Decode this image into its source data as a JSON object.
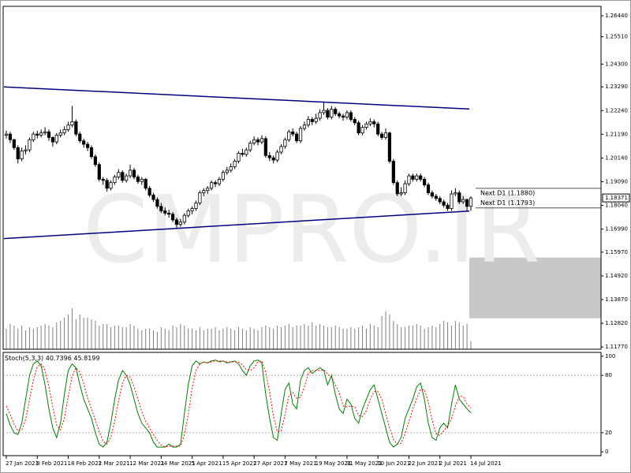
{
  "chart_data": [
    {
      "type": "candlestick",
      "watermark": "CMPRO.IR",
      "categories": [
        "27 Jan 2021",
        null,
        null,
        null,
        null,
        null,
        null,
        null,
        "8 Feb 2021",
        null,
        null,
        null,
        null,
        null,
        null,
        null,
        "18 Feb 2021",
        null,
        null,
        null,
        null,
        null,
        null,
        null,
        "2 Mar 2021",
        null,
        null,
        null,
        null,
        null,
        null,
        null,
        "12 Mar 2021",
        null,
        null,
        null,
        null,
        null,
        null,
        null,
        "24 Mar 2021",
        null,
        null,
        null,
        null,
        null,
        null,
        null,
        "5 Apr 2021",
        null,
        null,
        null,
        null,
        null,
        null,
        null,
        "15 Apr 2021",
        null,
        null,
        null,
        null,
        null,
        null,
        null,
        "27 Apr 2021",
        null,
        null,
        null,
        null,
        null,
        null,
        null,
        "7 May 2021",
        null,
        null,
        null,
        null,
        null,
        null,
        null,
        "19 May 2021",
        null,
        null,
        null,
        null,
        null,
        null,
        null,
        "31 May 2021",
        null,
        null,
        null,
        null,
        null,
        null,
        null,
        "10 Jun 2021",
        null,
        null,
        null,
        null,
        null,
        null,
        null,
        "22 Jun 2021",
        null,
        null,
        null,
        null,
        null,
        null,
        null,
        "2 Jul 2021",
        null,
        null,
        null,
        null,
        null,
        null,
        null,
        "14 Jul 2021"
      ],
      "open": [
        1.2115,
        1.212,
        1.2095,
        1.206,
        1.201,
        1.2045,
        1.205,
        1.2095,
        1.212,
        1.2115,
        1.2125,
        1.213,
        1.2105,
        1.2085,
        1.2115,
        1.2125,
        1.214,
        1.216,
        1.2175,
        1.212,
        1.209,
        1.2075,
        1.206,
        1.202,
        1.1985,
        1.192,
        1.1915,
        1.188,
        1.1905,
        1.193,
        1.195,
        1.1915,
        1.1935,
        1.196,
        1.193,
        1.191,
        1.192,
        1.188,
        1.185,
        1.183,
        1.18,
        1.178,
        1.177,
        1.1765,
        1.174,
        1.172,
        1.173,
        1.176,
        1.178,
        1.179,
        1.1815,
        1.186,
        1.187,
        1.188,
        1.1905,
        1.19,
        1.192,
        1.195,
        1.196,
        1.1975,
        1.2,
        1.2035,
        1.203,
        1.205,
        1.208,
        1.2095,
        1.2085,
        1.21,
        1.2025,
        1.2015,
        1.2005,
        1.204,
        1.2065,
        1.2095,
        1.213,
        1.212,
        1.209,
        1.2145,
        1.216,
        1.2185,
        1.2175,
        1.219,
        1.2215,
        1.2225,
        1.2195,
        1.223,
        1.221,
        1.22,
        1.2195,
        1.2215,
        1.2185,
        1.217,
        1.2125,
        1.215,
        1.2165,
        1.2175,
        1.2165,
        1.212,
        1.2105,
        1.2125,
        1.2,
        1.1905,
        1.1855,
        1.186,
        1.19,
        1.1935,
        1.192,
        1.1935,
        1.192,
        1.1895,
        1.186,
        1.1845,
        1.1835,
        1.182,
        1.1805,
        1.179,
        1.1855,
        1.186,
        1.182,
        1.183,
        1.18
      ],
      "high": [
        1.2135,
        1.213,
        1.21,
        1.207,
        1.206,
        1.207,
        1.2105,
        1.213,
        1.2135,
        1.214,
        1.215,
        1.214,
        1.211,
        1.2125,
        1.214,
        1.2155,
        1.2175,
        1.2245,
        1.2185,
        1.213,
        1.21,
        1.2085,
        1.207,
        1.203,
        1.1995,
        1.193,
        1.1925,
        1.1915,
        1.194,
        1.1965,
        1.196,
        1.1945,
        1.1985,
        1.197,
        1.194,
        1.193,
        1.1925,
        1.189,
        1.186,
        1.184,
        1.1815,
        1.1795,
        1.1785,
        1.1775,
        1.175,
        1.1745,
        1.177,
        1.179,
        1.18,
        1.1825,
        1.187,
        1.188,
        1.189,
        1.1915,
        1.1915,
        1.193,
        1.196,
        1.1975,
        1.199,
        1.201,
        1.2045,
        1.2055,
        1.206,
        1.209,
        1.211,
        1.2105,
        1.2115,
        1.211,
        1.204,
        1.2025,
        1.205,
        1.2075,
        1.2105,
        1.214,
        1.2145,
        1.213,
        1.2155,
        1.2175,
        1.22,
        1.2195,
        1.221,
        1.223,
        1.2265,
        1.2235,
        1.2245,
        1.224,
        1.222,
        1.221,
        1.2225,
        1.2225,
        1.2195,
        1.218,
        1.216,
        1.2175,
        1.219,
        1.2185,
        1.2175,
        1.213,
        1.2145,
        1.213,
        1.201,
        1.1915,
        1.1885,
        1.1915,
        1.1945,
        1.1945,
        1.1945,
        1.1945,
        1.193,
        1.1905,
        1.187,
        1.1855,
        1.1845,
        1.183,
        1.1815,
        1.187,
        1.188,
        1.187,
        1.1845,
        1.1835,
        1.1845
      ],
      "low": [
        1.21,
        1.208,
        1.205,
        1.199,
        1.2,
        1.203,
        1.204,
        1.2085,
        1.21,
        1.2105,
        1.2115,
        1.209,
        1.2065,
        1.2075,
        1.2105,
        1.2115,
        1.213,
        1.215,
        1.211,
        1.208,
        1.206,
        1.2045,
        1.201,
        1.1975,
        1.191,
        1.1895,
        1.1865,
        1.187,
        1.1895,
        1.192,
        1.1905,
        1.1905,
        1.1925,
        1.192,
        1.19,
        1.1895,
        1.187,
        1.184,
        1.182,
        1.179,
        1.177,
        1.176,
        1.175,
        1.173,
        1.1705,
        1.171,
        1.172,
        1.175,
        1.1765,
        1.178,
        1.1805,
        1.1845,
        1.1855,
        1.187,
        1.1885,
        1.189,
        1.191,
        1.194,
        1.195,
        1.1965,
        1.199,
        1.202,
        1.202,
        1.204,
        1.207,
        1.207,
        1.2075,
        1.2015,
        1.2,
        1.199,
        1.1995,
        1.203,
        1.2055,
        1.2085,
        1.211,
        1.208,
        1.208,
        1.2135,
        1.215,
        1.216,
        1.2165,
        1.218,
        1.2205,
        1.2185,
        1.2185,
        1.22,
        1.219,
        1.218,
        1.2185,
        1.2175,
        1.216,
        1.2115,
        1.2115,
        1.214,
        1.2155,
        1.215,
        1.211,
        1.2095,
        1.2095,
        1.199,
        1.1895,
        1.1845,
        1.1845,
        1.185,
        1.189,
        1.191,
        1.191,
        1.191,
        1.1885,
        1.185,
        1.1835,
        1.1825,
        1.181,
        1.1795,
        1.178,
        1.178,
        1.1845,
        1.181,
        1.181,
        1.178,
        1.178
      ],
      "close": [
        1.212,
        1.2095,
        1.206,
        1.201,
        1.2045,
        1.205,
        1.2095,
        1.212,
        1.2115,
        1.2125,
        1.213,
        1.2105,
        1.2085,
        1.2115,
        1.2125,
        1.214,
        1.216,
        1.2175,
        1.212,
        1.209,
        1.2075,
        1.206,
        1.202,
        1.1985,
        1.192,
        1.1915,
        1.188,
        1.1905,
        1.193,
        1.195,
        1.1915,
        1.1935,
        1.196,
        1.193,
        1.191,
        1.192,
        1.188,
        1.185,
        1.183,
        1.18,
        1.178,
        1.177,
        1.1765,
        1.174,
        1.172,
        1.173,
        1.176,
        1.178,
        1.179,
        1.1815,
        1.186,
        1.187,
        1.188,
        1.1905,
        1.19,
        1.192,
        1.195,
        1.196,
        1.1975,
        1.2,
        1.2035,
        1.203,
        1.205,
        1.208,
        1.2095,
        1.2085,
        1.21,
        1.2025,
        1.2015,
        1.2005,
        1.204,
        1.2065,
        1.2095,
        1.213,
        1.212,
        1.209,
        1.2145,
        1.216,
        1.2185,
        1.2175,
        1.219,
        1.2215,
        1.2225,
        1.2195,
        1.223,
        1.221,
        1.22,
        1.2195,
        1.2215,
        1.2185,
        1.217,
        1.2125,
        1.215,
        1.2165,
        1.2175,
        1.2165,
        1.212,
        1.2105,
        1.2125,
        1.2,
        1.1905,
        1.1855,
        1.186,
        1.19,
        1.1935,
        1.192,
        1.1935,
        1.192,
        1.1895,
        1.186,
        1.1845,
        1.1835,
        1.182,
        1.1805,
        1.179,
        1.1855,
        1.186,
        1.182,
        1.183,
        1.18,
        1.1837
      ],
      "volume": [
        26,
        32,
        30,
        26,
        30,
        24,
        28,
        26,
        28,
        30,
        32,
        30,
        28,
        34,
        36,
        40,
        44,
        52,
        38,
        44,
        40,
        40,
        38,
        36,
        30,
        32,
        32,
        28,
        30,
        30,
        28,
        28,
        32,
        30,
        26,
        24,
        26,
        26,
        24,
        22,
        28,
        26,
        24,
        30,
        28,
        32,
        30,
        26,
        26,
        24,
        28,
        24,
        26,
        26,
        28,
        24,
        26,
        28,
        26,
        24,
        28,
        26,
        24,
        28,
        26,
        24,
        28,
        30,
        28,
        26,
        30,
        28,
        30,
        32,
        28,
        30,
        30,
        32,
        30,
        34,
        30,
        32,
        30,
        28,
        28,
        30,
        28,
        26,
        26,
        28,
        26,
        28,
        30,
        26,
        32,
        30,
        28,
        42,
        48,
        44,
        36,
        32,
        28,
        28,
        30,
        30,
        32,
        30,
        26,
        28,
        30,
        28,
        32,
        36,
        34,
        30,
        36,
        34,
        30,
        32,
        10
      ],
      "volume_color": "#808080",
      "candle_color": "#000000",
      "ylim": [
        1.1167,
        1.2686
      ],
      "yticks": [
        {
          "value": 1.2644,
          "label": "1.26440"
        },
        {
          "value": 1.2551,
          "label": "1.25510"
        },
        {
          "value": 1.243,
          "label": "1.24300"
        },
        {
          "value": 1.2329,
          "label": "1.23290"
        },
        {
          "value": 1.2224,
          "label": "1.22240"
        },
        {
          "value": 1.2119,
          "label": "1.21190"
        },
        {
          "value": 1.2014,
          "label": "1.20140"
        },
        {
          "value": 1.1909,
          "label": "1.19090"
        },
        {
          "value": 1.1804,
          "label": "1.18040"
        },
        {
          "value": 1.1699,
          "label": "1.16990"
        },
        {
          "value": 1.1597,
          "label": "1.15970"
        },
        {
          "value": 1.1492,
          "label": "1.14920"
        },
        {
          "value": 1.1387,
          "label": "1.13870"
        },
        {
          "value": 1.1282,
          "label": "1.12820"
        },
        {
          "value": 1.1177,
          "label": "1.11770"
        }
      ],
      "trendlines": [
        {
          "color": "#000080",
          "values": [
            1.2329,
            1.2231
          ]
        },
        {
          "color": "#000080",
          "values": [
            1.1657,
            1.1779
          ]
        }
      ],
      "levels": [
        {
          "value": 1.188,
          "label": "Next D1 (1.1880)"
        },
        {
          "value": 1.1793,
          "label": "Next D1 (1.1793)"
        }
      ],
      "zone": {
        "color": "#c8c8c8",
        "values": [
          1.1573,
          1.1304
        ]
      },
      "last_price": 1.18371
    },
    {
      "type": "line",
      "title": "Stoch(5,3,3)",
      "ylim": [
        -4,
        104
      ],
      "yticks": [
        100,
        80,
        20,
        0
      ],
      "dotted_levels": [
        80,
        20
      ],
      "series": [
        {
          "color": "#008000",
          "dash": false,
          "values": [
            40,
            28,
            20,
            18,
            30,
            55,
            80,
            92,
            95,
            90,
            70,
            45,
            25,
            15,
            30,
            60,
            85,
            92,
            88,
            70,
            55,
            45,
            35,
            20,
            8,
            5,
            10,
            30,
            55,
            75,
            85,
            80,
            70,
            55,
            40,
            30,
            25,
            20,
            10,
            5,
            5,
            5,
            8,
            5,
            5,
            8,
            40,
            70,
            90,
            95,
            92,
            94,
            93,
            95,
            96,
            94,
            95,
            93,
            94,
            95,
            92,
            85,
            80,
            90,
            95,
            96,
            93,
            60,
            35,
            15,
            12,
            40,
            65,
            72,
            50,
            45,
            75,
            85,
            88,
            82,
            85,
            88,
            85,
            70,
            80,
            60,
            45,
            40,
            55,
            50,
            35,
            30,
            45,
            55,
            65,
            70,
            55,
            40,
            25,
            10,
            5,
            8,
            15,
            35,
            45,
            55,
            68,
            72,
            55,
            30,
            15,
            12,
            25,
            30,
            25,
            50,
            70,
            55,
            50,
            45,
            40.7396
          ]
        },
        {
          "color": "#ff0000",
          "dash": true,
          "values": [
            48,
            39,
            29,
            22,
            23,
            34,
            55,
            76,
            89,
            92,
            85,
            68,
            47,
            28,
            23,
            35,
            58,
            79,
            88,
            83,
            71,
            56,
            45,
            33,
            21,
            11,
            8,
            15,
            32,
            53,
            72,
            80,
            78,
            68,
            55,
            42,
            32,
            25,
            18,
            12,
            7,
            5,
            6,
            6,
            6,
            6,
            18,
            39,
            67,
            85,
            92,
            94,
            93,
            94,
            95,
            95,
            95,
            94,
            94,
            94,
            94,
            91,
            86,
            85,
            88,
            94,
            95,
            83,
            63,
            37,
            21,
            22,
            39,
            59,
            62,
            56,
            57,
            68,
            82,
            85,
            85,
            85,
            86,
            81,
            78,
            70,
            62,
            48,
            47,
            48,
            47,
            38,
            37,
            43,
            55,
            63,
            63,
            55,
            40,
            25,
            13,
            8,
            9,
            19,
            32,
            45,
            56,
            65,
            65,
            52,
            33,
            19,
            17,
            22,
            27,
            35,
            48,
            58,
            58,
            50,
            45.8199
          ]
        }
      ]
    }
  ]
}
